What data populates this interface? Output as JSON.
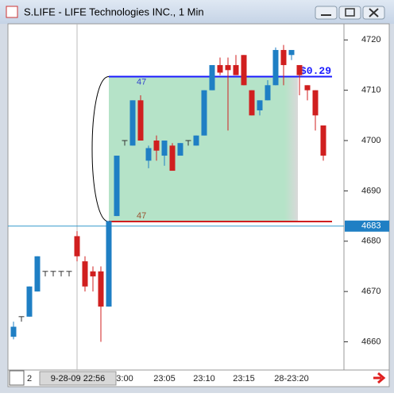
{
  "chart_data": {
    "type": "candlestick",
    "title": "S.LIFE - LIFE Technologies INC., 1 Min",
    "categories": [
      null,
      null,
      "2",
      null,
      null,
      null,
      null,
      null,
      null,
      null,
      null,
      null,
      null,
      null,
      "3:00",
      null,
      null,
      null,
      null,
      "23:05",
      null,
      null,
      null,
      null,
      "23:10",
      null,
      null,
      null,
      null,
      "23:15",
      null,
      null,
      null,
      null,
      null,
      "28-23:20",
      null,
      null,
      null,
      null
    ],
    "cursor_label": "9-28-09 22:56",
    "open": [
      4661,
      4665,
      4665,
      4670,
      4674,
      4674,
      4674,
      4674,
      4681,
      4676,
      4674,
      4674,
      4667,
      4685,
      4700,
      4699,
      4708,
      4696,
      4700,
      4697,
      4699,
      4697,
      4700,
      4699,
      4701,
      4710,
      4715,
      4715,
      4715,
      4717,
      4710,
      4706,
      4708,
      4711,
      4718,
      4717,
      4715,
      4711,
      4710,
      4703
    ],
    "high": [
      4664,
      4665,
      4671,
      4677,
      4674,
      4674,
      4674,
      4674,
      4682,
      4677,
      4675,
      4675,
      4684,
      4697,
      4700,
      4708,
      4709,
      4699,
      4701,
      4700,
      4699.5,
      4699.5,
      4700,
      4701,
      4710,
      4715,
      4716.5,
      4716.5,
      4717,
      4717,
      4710,
      4708,
      4712,
      4718.5,
      4719,
      4718,
      4715,
      4711,
      4710,
      4703
    ],
    "low": [
      4660.5,
      4664,
      4665,
      4670,
      4673,
      4673,
      4673,
      4673,
      4676,
      4670,
      4670,
      4660,
      4667,
      4685,
      4699,
      4699,
      4700,
      4694.5,
      4696,
      4695,
      4694,
      4697,
      4699,
      4699,
      4701,
      4710,
      4713,
      4702,
      4713,
      4711,
      4705,
      4705,
      4708,
      4711,
      4711,
      4716,
      4709,
      4708,
      4702,
      4696
    ],
    "close": [
      4663,
      4665,
      4671,
      4677,
      4674,
      4674,
      4674,
      4674,
      4677,
      4671,
      4673,
      4667,
      4684,
      4697,
      4700,
      4708,
      4700,
      4698.5,
      4698,
      4700,
      4694,
      4699.5,
      4700,
      4701,
      4710,
      4715,
      4713.5,
      4714,
      4713,
      4711,
      4705,
      4708,
      4711,
      4718,
      4715,
      4718,
      4713,
      4710,
      4705,
      4697
    ],
    "up_color": "#1f7fc4",
    "down_color": "#d01f1f",
    "ylim": [
      4654.4,
      4723.2
    ],
    "yticks": [
      4660,
      4670,
      4680,
      4690,
      4700,
      4710,
      4720
    ],
    "last_price": 4683,
    "measure": {
      "top": 4712.7,
      "bottom": 4683.9,
      "top_label": "47",
      "bottom_label": "47",
      "text": "$0.29"
    }
  }
}
